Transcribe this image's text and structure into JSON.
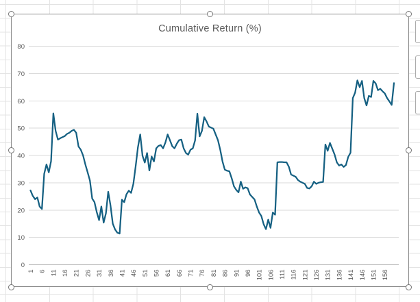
{
  "chart": {
    "title": "Cumulative Return (%)",
    "selected": true,
    "side_buttons": [
      {
        "name": "chart-flyout-button-1"
      },
      {
        "name": "chart-flyout-button-2"
      },
      {
        "name": "chart-flyout-button-3"
      }
    ]
  },
  "colors": {
    "series_line": "#156082",
    "chart_gridline": "#d9d9d9",
    "axis_line": "#bfbfbf",
    "tick_label": "#595959",
    "title": "#595959",
    "sheet_gridline": "#e3e3e3",
    "selection_border": "#8a8a8a",
    "handle_border": "#757575"
  },
  "chart_data": {
    "type": "line",
    "title": "Cumulative Return (%)",
    "legend": "none",
    "grid": true,
    "ylim": [
      0,
      80
    ],
    "y_ticks": [
      0,
      10,
      20,
      30,
      40,
      50,
      60,
      70,
      80
    ],
    "x_tick_labels": [
      "1",
      "6",
      "11",
      "16",
      "21",
      "26",
      "31",
      "36",
      "41",
      "46",
      "51",
      "56",
      "61",
      "66",
      "71",
      "76",
      "81",
      "86",
      "91",
      "96",
      "101",
      "106",
      "111",
      "116",
      "121",
      "126",
      "131",
      "136",
      "141",
      "146",
      "151",
      "156"
    ],
    "x_start": 1,
    "x_step": 1,
    "values": [
      27.2,
      25.2,
      24.0,
      24.6,
      21.3,
      20.4,
      33.3,
      36.7,
      33.8,
      37.9,
      55.4,
      49.0,
      45.8,
      46.3,
      46.7,
      47.1,
      47.9,
      48.3,
      49.0,
      49.4,
      48.3,
      43.3,
      42.1,
      40.0,
      36.7,
      33.8,
      30.8,
      24.2,
      22.9,
      19.2,
      16.3,
      21.3,
      15.4,
      18.8,
      26.7,
      21.7,
      15.0,
      12.9,
      11.7,
      11.4,
      23.8,
      22.9,
      25.8,
      27.1,
      26.3,
      29.6,
      36.0,
      43.0,
      47.7,
      39.9,
      37.4,
      40.9,
      34.5,
      39.6,
      37.8,
      42.6,
      43.5,
      43.8,
      42.6,
      44.7,
      47.7,
      45.6,
      43.4,
      42.6,
      44.3,
      45.6,
      45.8,
      42.6,
      40.9,
      40.3,
      42.1,
      42.6,
      45.5,
      55.3,
      47.0,
      49.0,
      54.0,
      52.5,
      50.6,
      50.2,
      49.8,
      47.7,
      45.6,
      42.1,
      37.8,
      34.8,
      34.4,
      34.2,
      31.7,
      28.7,
      27.4,
      26.5,
      30.4,
      27.8,
      28.3,
      28.0,
      25.7,
      24.8,
      23.9,
      21.3,
      19.1,
      17.8,
      14.8,
      13.0,
      16.5,
      13.5,
      19.1,
      18.3,
      37.5,
      37.6,
      37.6,
      37.5,
      37.5,
      35.9,
      33.0,
      32.6,
      32.2,
      31.0,
      30.4,
      30.0,
      29.6,
      28.1,
      27.9,
      28.7,
      30.4,
      29.6,
      30.0,
      30.2,
      30.3,
      44.0,
      41.7,
      44.6,
      42.5,
      40.4,
      37.5,
      36.3,
      36.7,
      35.8,
      36.5,
      39.5,
      41.0,
      61.0,
      63.0,
      67.5,
      65.0,
      67.3,
      61.0,
      58.3,
      61.8,
      61.4,
      67.3,
      66.4,
      63.9,
      64.4,
      63.5,
      62.7,
      61.0,
      59.8,
      58.5,
      66.5
    ],
    "line_color": "#156082"
  }
}
